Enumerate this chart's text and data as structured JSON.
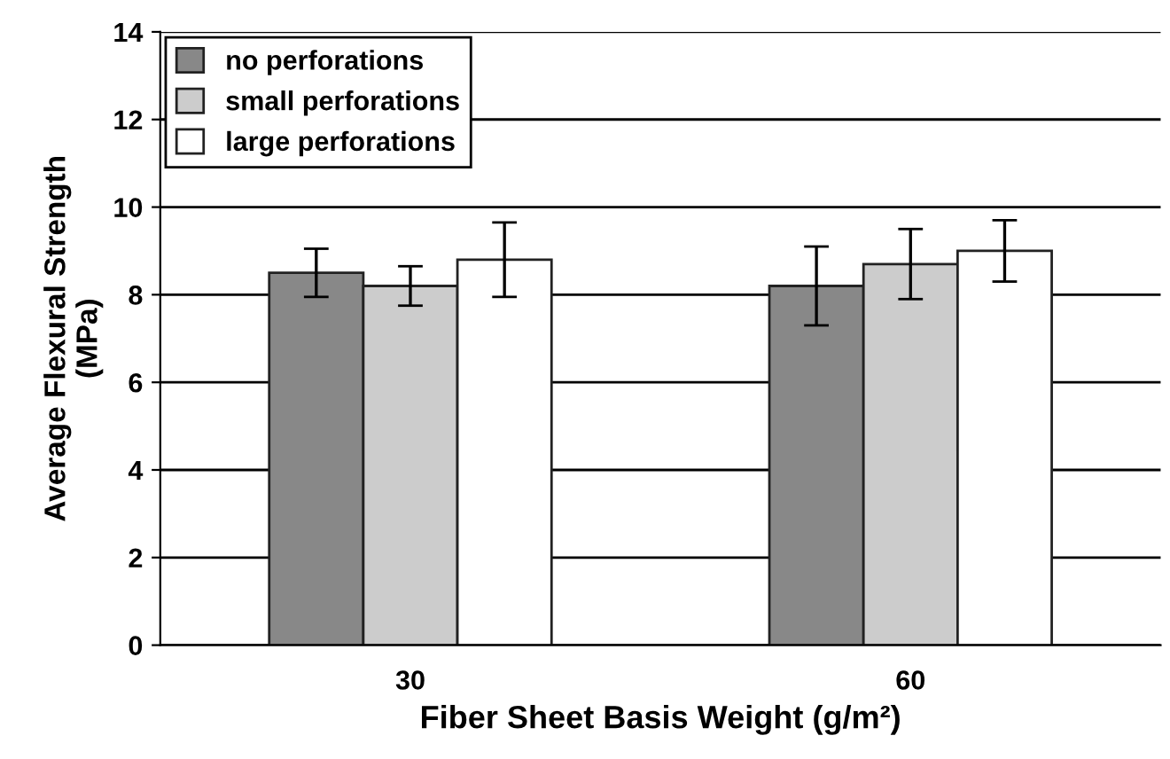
{
  "chart_data": {
    "type": "bar",
    "xlabel": "Fiber Sheet Basis Weight (g/m²)",
    "ylabel": "Average Flexural Strength\n(MPa)",
    "categories": [
      "30",
      "60"
    ],
    "series": [
      {
        "name": "no perforations",
        "color": "#888888",
        "values": [
          8.5,
          8.2
        ],
        "errors": [
          0.55,
          0.9
        ]
      },
      {
        "name": "small perforations",
        "color": "#cccccc",
        "values": [
          8.2,
          8.7
        ],
        "errors": [
          0.45,
          0.8
        ]
      },
      {
        "name": "large perforations",
        "color": "#ffffff",
        "values": [
          8.8,
          9.0
        ],
        "errors": [
          0.85,
          0.7
        ]
      }
    ],
    "ylim": [
      0,
      14
    ],
    "yticks": [
      0,
      2,
      4,
      6,
      8,
      10,
      12,
      14
    ],
    "grid": "y",
    "legend": "top left"
  }
}
